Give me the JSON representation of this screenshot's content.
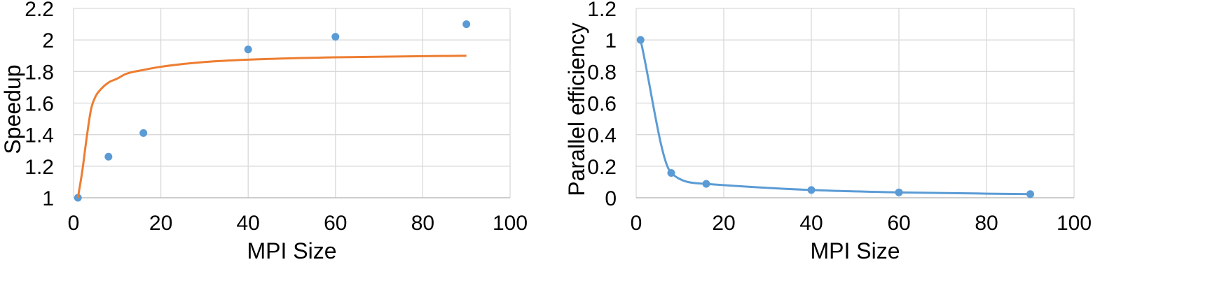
{
  "chart_data": [
    {
      "type": "scatter",
      "xlabel": "MPI Size",
      "ylabel": "Speedup",
      "xlim": [
        0,
        100
      ],
      "ylim": [
        1,
        2.2
      ],
      "xticks": [
        "0",
        "20",
        "40",
        "60",
        "80",
        "100"
      ],
      "yticks": [
        "1",
        "1.2",
        "1.4",
        "1.6",
        "1.8",
        "2",
        "2.2"
      ],
      "grid": true,
      "series": [
        {
          "kind": "markers",
          "color": "#5b9bd5",
          "x": [
            1,
            8,
            16,
            40,
            60,
            90
          ],
          "y": [
            1.0,
            1.26,
            1.41,
            1.94,
            2.02,
            2.1
          ]
        },
        {
          "kind": "line",
          "color": "#ed7d31",
          "x": [
            1,
            2,
            3,
            4,
            5,
            6,
            8,
            10,
            12,
            16,
            20,
            30,
            40,
            60,
            90
          ],
          "y": [
            1.0,
            1.17,
            1.38,
            1.56,
            1.64,
            1.68,
            1.73,
            1.755,
            1.785,
            1.81,
            1.83,
            1.86,
            1.875,
            1.89,
            1.9
          ]
        }
      ]
    },
    {
      "type": "line",
      "xlabel": "MPI Size",
      "ylabel": "Parallel efficiency",
      "xlim": [
        0,
        100
      ],
      "ylim": [
        0,
        1.2
      ],
      "xticks": [
        "0",
        "20",
        "40",
        "60",
        "80",
        "100"
      ],
      "yticks": [
        "0",
        "0.2",
        "0.4",
        "0.6",
        "0.8",
        "1",
        "1.2"
      ],
      "grid": true,
      "series": [
        {
          "color": "#5b9bd5",
          "x": [
            1,
            8,
            16,
            40,
            60,
            90
          ],
          "y": [
            1.0,
            0.157,
            0.088,
            0.049,
            0.034,
            0.023
          ]
        }
      ]
    }
  ]
}
